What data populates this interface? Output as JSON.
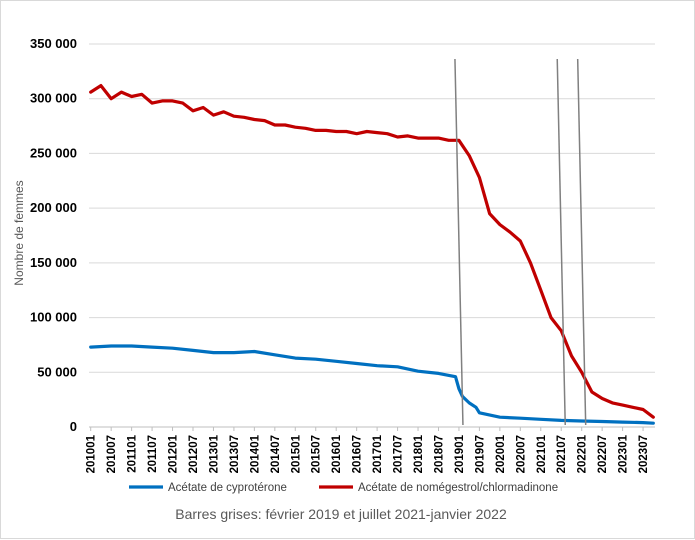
{
  "chart_data": {
    "type": "line",
    "title": "",
    "ylabel": "Nombre de femmes",
    "xlabel": "",
    "ylim": [
      0,
      350000
    ],
    "yticks": [
      0,
      50000,
      100000,
      150000,
      200000,
      250000,
      300000,
      350000
    ],
    "ytick_labels": [
      "0",
      "50 000",
      "100 000",
      "150 000",
      "200 000",
      "250 000",
      "300 000",
      "350 000"
    ],
    "x_start": "201001",
    "x_end": "202310",
    "xtick_labels": [
      "201001",
      "201007",
      "201101",
      "201107",
      "201201",
      "201207",
      "201301",
      "201307",
      "201401",
      "201407",
      "201501",
      "201507",
      "201601",
      "201607",
      "201701",
      "201707",
      "201801",
      "201807",
      "201901",
      "201907",
      "202001",
      "202007",
      "202101",
      "202107",
      "202201",
      "202207",
      "202301",
      "202307"
    ],
    "grid": "horizontal",
    "legend_position": "bottom",
    "series": [
      {
        "name": "Acétate de cyprotérone",
        "color": "#0070c0",
        "points": [
          [
            "201001",
            73000
          ],
          [
            "201007",
            74000
          ],
          [
            "201101",
            74000
          ],
          [
            "201107",
            73000
          ],
          [
            "201201",
            72000
          ],
          [
            "201207",
            70000
          ],
          [
            "201301",
            68000
          ],
          [
            "201307",
            68000
          ],
          [
            "201401",
            69000
          ],
          [
            "201407",
            66000
          ],
          [
            "201501",
            63000
          ],
          [
            "201507",
            62000
          ],
          [
            "201601",
            60000
          ],
          [
            "201607",
            58000
          ],
          [
            "201701",
            56000
          ],
          [
            "201707",
            55000
          ],
          [
            "201801",
            51000
          ],
          [
            "201807",
            49000
          ],
          [
            "201812",
            46000
          ],
          [
            "201901",
            35000
          ],
          [
            "201902",
            28000
          ],
          [
            "201904",
            22000
          ],
          [
            "201906",
            18000
          ],
          [
            "201907",
            13000
          ],
          [
            "202001",
            9000
          ],
          [
            "202007",
            8000
          ],
          [
            "202101",
            7000
          ],
          [
            "202107",
            6000
          ],
          [
            "202201",
            5500
          ],
          [
            "202207",
            5000
          ],
          [
            "202301",
            4500
          ],
          [
            "202307",
            4000
          ],
          [
            "202310",
            3500
          ]
        ]
      },
      {
        "name": "Acétate de nomégestrol/chlormadinone",
        "color": "#c00000",
        "points": [
          [
            "201001",
            306000
          ],
          [
            "201004",
            312000
          ],
          [
            "201007",
            300000
          ],
          [
            "201010",
            306000
          ],
          [
            "201101",
            302000
          ],
          [
            "201104",
            304000
          ],
          [
            "201107",
            296000
          ],
          [
            "201110",
            298000
          ],
          [
            "201201",
            298000
          ],
          [
            "201204",
            296000
          ],
          [
            "201207",
            289000
          ],
          [
            "201210",
            292000
          ],
          [
            "201301",
            285000
          ],
          [
            "201304",
            288000
          ],
          [
            "201307",
            284000
          ],
          [
            "201310",
            283000
          ],
          [
            "201401",
            281000
          ],
          [
            "201404",
            280000
          ],
          [
            "201407",
            276000
          ],
          [
            "201410",
            276000
          ],
          [
            "201501",
            274000
          ],
          [
            "201504",
            273000
          ],
          [
            "201507",
            271000
          ],
          [
            "201510",
            271000
          ],
          [
            "201601",
            270000
          ],
          [
            "201604",
            270000
          ],
          [
            "201607",
            268000
          ],
          [
            "201610",
            270000
          ],
          [
            "201701",
            269000
          ],
          [
            "201704",
            268000
          ],
          [
            "201707",
            265000
          ],
          [
            "201710",
            266000
          ],
          [
            "201801",
            264000
          ],
          [
            "201804",
            264000
          ],
          [
            "201807",
            264000
          ],
          [
            "201810",
            262000
          ],
          [
            "201901",
            262000
          ],
          [
            "201904",
            248000
          ],
          [
            "201907",
            228000
          ],
          [
            "201910",
            195000
          ],
          [
            "202001",
            185000
          ],
          [
            "202004",
            178000
          ],
          [
            "202007",
            170000
          ],
          [
            "202010",
            150000
          ],
          [
            "202101",
            125000
          ],
          [
            "202104",
            100000
          ],
          [
            "202107",
            88000
          ],
          [
            "202110",
            65000
          ],
          [
            "202201",
            50000
          ],
          [
            "202204",
            32000
          ],
          [
            "202207",
            26000
          ],
          [
            "202210",
            22000
          ],
          [
            "202301",
            20000
          ],
          [
            "202304",
            18000
          ],
          [
            "202307",
            16000
          ],
          [
            "202310",
            9000
          ]
        ]
      }
    ],
    "annotation_lines": [
      "201901",
      "202107",
      "202201"
    ],
    "caption": "Barres grises: février 2019 et juillet 2021-janvier 2022"
  }
}
